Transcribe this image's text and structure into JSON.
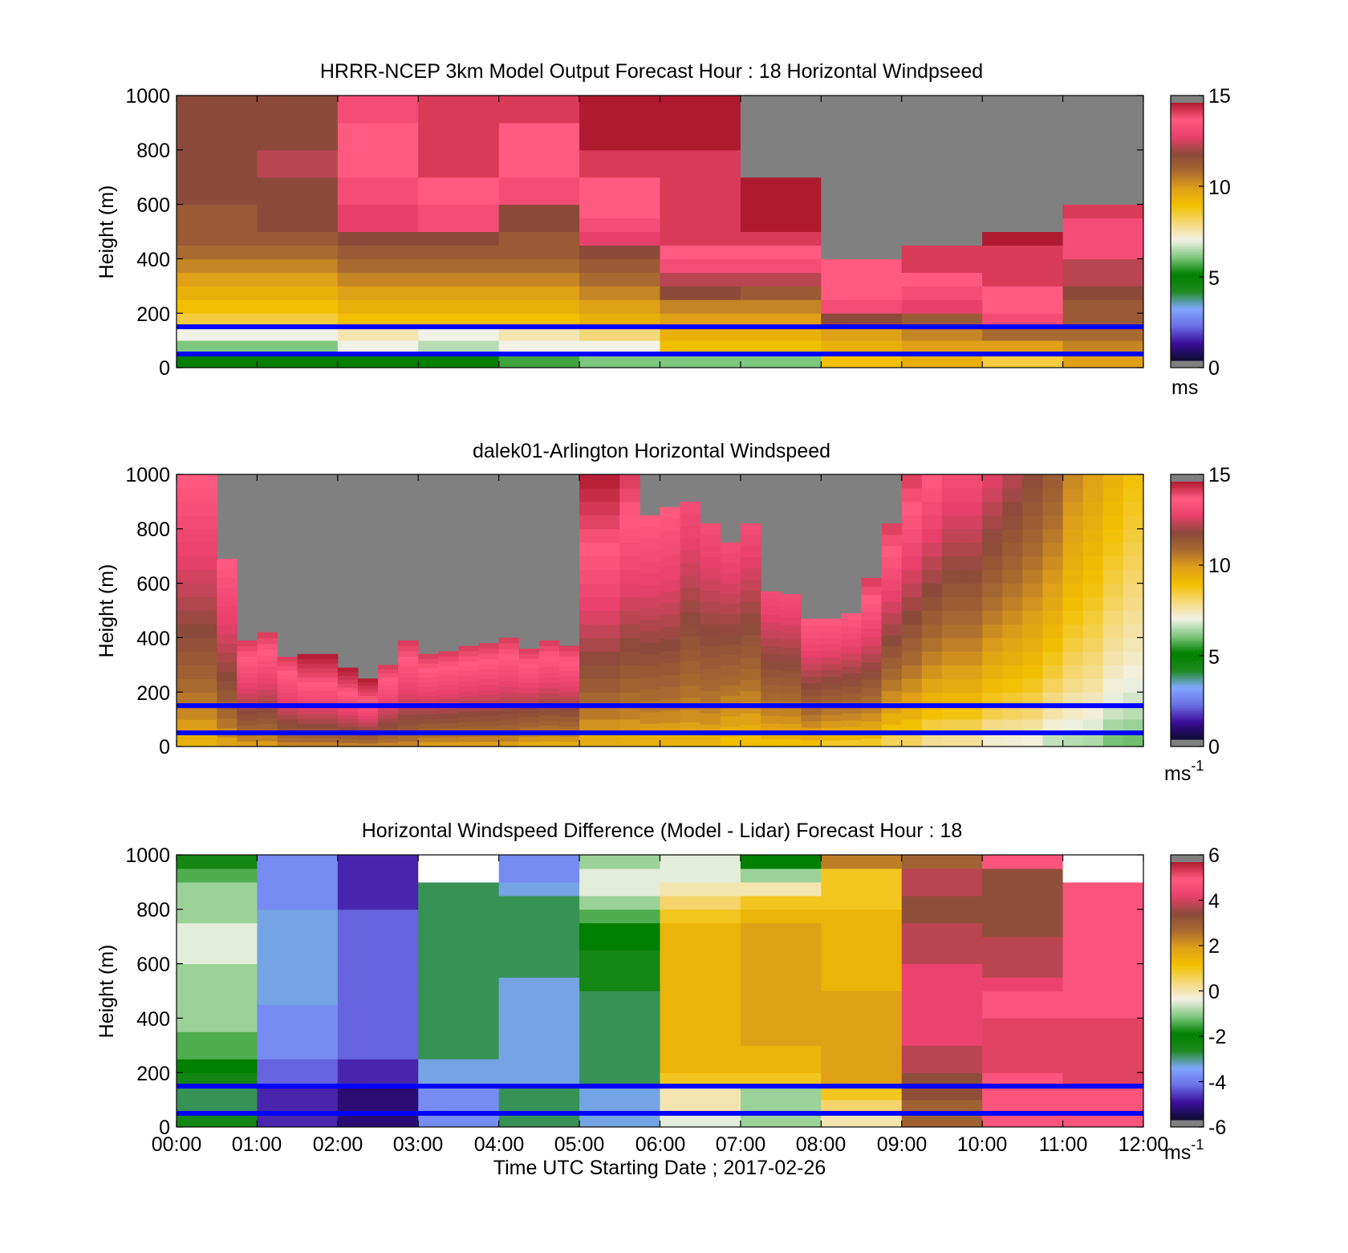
{
  "panels": [
    {
      "title": "HRRR-NCEP 3km Model Output   Forecast Hour : 18 Horizontal Windpseed",
      "ylabel": "Height (m)",
      "yticks": [
        "0",
        "200",
        "400",
        "600",
        "800",
        "1000"
      ],
      "colorbar": {
        "ticks": [
          "0",
          "5",
          "10",
          "15"
        ],
        "unit": "ms",
        "unit_sup": ""
      }
    },
    {
      "title": "dalek01-Arlington  Horizontal Windspeed",
      "ylabel": "Height (m)",
      "yticks": [
        "0",
        "200",
        "400",
        "600",
        "800",
        "1000"
      ],
      "colorbar": {
        "ticks": [
          "0",
          "5",
          "10",
          "15"
        ],
        "unit": "ms",
        "unit_sup": "-1"
      }
    },
    {
      "title": "Horizontal Windspeed Difference (Model - Lidar) Forecast Hour : 18",
      "ylabel": "Height (m)",
      "yticks": [
        "0",
        "200",
        "400",
        "600",
        "800",
        "1000"
      ],
      "colorbar": {
        "ticks": [
          "-6",
          "-4",
          "-2",
          "0",
          "2",
          "4",
          "6"
        ],
        "unit": "ms",
        "unit_sup": "-1"
      }
    }
  ],
  "xticks": [
    "00:00",
    "01:00",
    "02:00",
    "03:00",
    "04:00",
    "05:00",
    "06:00",
    "07:00",
    "08:00",
    "09:00",
    "10:00",
    "11:00",
    "12:00"
  ],
  "xlabel": "Time UTC  Starting Date ; 2017-02-26",
  "colors": {
    "missing": "#808080",
    "reference_lines": "#0000ff",
    "speed_stops": [
      "#0d0d30",
      "#3b0d9a",
      "#6b6fe6",
      "#80a8ff",
      "#1e8a1e",
      "#008000",
      "#7ec77e",
      "#f2f2e6",
      "#f5d87a",
      "#f2c000",
      "#e0a018",
      "#a86a30",
      "#8b4a3a",
      "#e8406a",
      "#ff5a80",
      "#b01a30"
    ],
    "diff_stops": [
      "#0d0d30",
      "#3b0d9a",
      "#6b6fe6",
      "#80a8ff",
      "#1e8a1e",
      "#008000",
      "#7ec77e",
      "#f2f2e6",
      "#f5d87a",
      "#f2c000",
      "#e0a018",
      "#a86a30",
      "#8b4a3a",
      "#e8406a",
      "#ff5a80",
      "#b01a30"
    ]
  },
  "chart_data": [
    {
      "type": "heatmap",
      "title": "HRRR-NCEP 3km Model Output   Forecast Hour : 18 Horizontal Windpseed",
      "xlabel": "",
      "ylabel": "Height (m)",
      "xlim": [
        0,
        12
      ],
      "ylim": [
        0,
        1000
      ],
      "x_unit": "hours UTC",
      "time_start_hours": [
        0,
        1,
        2,
        3,
        4,
        5,
        6,
        7,
        8,
        9,
        10,
        11
      ],
      "time_step_hours": 1,
      "heights_m": [
        0,
        50,
        100,
        150,
        200,
        250,
        300,
        350,
        400,
        450,
        500,
        550,
        600,
        700,
        800,
        900
      ],
      "height_top_m": 1000,
      "values_ms": [
        [
          5,
          6,
          7,
          8.5,
          9,
          9.5,
          10,
          10.5,
          11,
          11.5,
          11.5,
          11.5,
          12,
          12,
          12,
          12
        ],
        [
          5,
          6,
          7,
          8.5,
          9,
          9.5,
          10,
          10.5,
          11,
          11.5,
          12,
          12,
          12,
          12.5,
          12,
          12
        ],
        [
          5,
          7,
          7.5,
          9,
          9.5,
          10,
          10.5,
          11,
          11.5,
          12,
          13,
          13,
          13.5,
          14,
          14,
          13.5
        ],
        [
          5,
          6.5,
          7,
          9,
          9.5,
          10,
          10.5,
          11,
          11.5,
          12,
          13.5,
          13.5,
          14,
          14.5,
          14.5,
          14.5
        ],
        [
          5.5,
          7,
          7.5,
          9,
          9.5,
          10,
          10.5,
          11,
          11.5,
          11.5,
          12,
          12,
          13.5,
          14,
          14,
          14.5
        ],
        [
          6,
          7,
          8,
          9.5,
          10,
          10.5,
          11,
          11.5,
          12,
          13,
          13.5,
          14,
          14,
          14.5,
          15,
          15
        ],
        [
          6,
          9,
          9.5,
          10,
          10.5,
          12,
          12.5,
          13.5,
          14,
          14.5,
          14.5,
          14.5,
          14.5,
          14.5,
          15,
          15
        ],
        [
          6,
          9,
          9.5,
          10,
          10.5,
          11.5,
          12.5,
          13.5,
          14,
          14.5,
          15,
          15,
          15,
          null,
          null,
          null
        ],
        [
          9,
          9.5,
          10,
          12,
          13.5,
          14,
          14,
          14,
          null,
          null,
          null,
          null,
          null,
          null,
          null,
          null
        ],
        [
          9.5,
          10,
          10.5,
          11.5,
          13,
          13.5,
          14,
          14.5,
          14.5,
          null,
          null,
          null,
          null,
          null,
          null,
          null
        ],
        [
          8.5,
          10,
          11,
          13.5,
          14,
          14,
          14.5,
          14.5,
          14.5,
          15,
          null,
          null,
          null,
          null,
          null,
          null
        ],
        [
          10,
          10.5,
          11,
          11.5,
          11.5,
          12,
          12.5,
          12.5,
          13.5,
          13.5,
          13.5,
          14.5,
          null,
          null,
          null,
          null
        ]
      ],
      "null_meaning": "no data (gray)",
      "reference_lines_m": [
        50,
        150
      ],
      "colorbar": {
        "min": 0,
        "max": 15,
        "ticks": [
          0,
          5,
          10,
          15
        ],
        "unit": "ms"
      }
    },
    {
      "type": "heatmap",
      "title": "dalek01-Arlington  Horizontal Windspeed",
      "xlabel": "",
      "ylabel": "Height (m)",
      "xlim": [
        0,
        12
      ],
      "ylim": [
        0,
        1000
      ],
      "x_unit": "hours UTC",
      "time_step_hours": 0.25,
      "profile_top_m": [
        1000,
        1000,
        690,
        390,
        420,
        330,
        340,
        340,
        290,
        250,
        300,
        390,
        340,
        350,
        370,
        380,
        400,
        360,
        390,
        370,
        1000,
        1000,
        1000,
        850,
        880,
        900,
        820,
        750,
        820,
        570,
        560,
        470,
        470,
        490,
        620,
        820,
        1000,
        1000,
        1000,
        1000,
        1000,
        1000,
        1000,
        1000,
        1000,
        1000,
        1000,
        1000
      ],
      "surface_speed_ms": [
        9,
        9,
        9.5,
        9.5,
        9.5,
        10,
        10,
        10,
        10,
        10,
        10,
        10,
        9.5,
        9.5,
        9.5,
        9.5,
        9.5,
        9,
        9,
        9,
        9,
        9,
        9,
        9,
        9,
        9,
        9,
        8.5,
        8.5,
        8.5,
        8.5,
        8.5,
        8,
        8,
        8,
        7.5,
        7.5,
        7,
        7,
        7,
        6.5,
        6.5,
        6.5,
        6,
        6,
        6,
        5.5,
        5.5
      ],
      "aloft_speed_ms": [
        14,
        14,
        14,
        14.5,
        14.5,
        14.5,
        15,
        15,
        15,
        15,
        14.5,
        14.5,
        14.5,
        14.5,
        14.5,
        14.5,
        14.5,
        14.5,
        14.5,
        14.5,
        15,
        15,
        14.5,
        14,
        14,
        13.5,
        13.5,
        13.5,
        13.5,
        13.5,
        13.5,
        14,
        14,
        14,
        14.5,
        14.5,
        14.5,
        14,
        13.5,
        13.5,
        13,
        12.5,
        12,
        11.5,
        10.5,
        10,
        9.5,
        9
      ],
      "null_meaning": "no data above profile top (gray)",
      "reference_lines_m": [
        50,
        150
      ],
      "colorbar": {
        "min": 0,
        "max": 15,
        "ticks": [
          0,
          5,
          10,
          15
        ],
        "unit": "ms-1"
      }
    },
    {
      "type": "heatmap",
      "title": "Horizontal Windspeed Difference (Model - Lidar) Forecast Hour : 18",
      "xlabel": "Time UTC  Starting Date ; 2017-02-26",
      "ylabel": "Height (m)",
      "xlim": [
        0,
        12
      ],
      "ylim": [
        0,
        1000
      ],
      "x_unit": "hours UTC",
      "x_ticks": [
        "00:00",
        "01:00",
        "02:00",
        "03:00",
        "04:00",
        "05:00",
        "06:00",
        "07:00",
        "08:00",
        "09:00",
        "10:00",
        "11:00",
        "12:00"
      ],
      "time_start_hours": [
        0,
        1,
        2,
        3,
        4,
        5,
        6,
        7,
        8,
        9,
        10,
        11
      ],
      "time_step_hours": 1,
      "heights_m": [
        0,
        50,
        100,
        150,
        200,
        250,
        300,
        350,
        400,
        450,
        500,
        550,
        600,
        650,
        700,
        750,
        800,
        850,
        900,
        950
      ],
      "height_top_m": 1000,
      "values_ms": [
        [
          -2.5,
          -3,
          -3,
          -2.5,
          -2,
          -1.5,
          -1.5,
          -1,
          -1,
          -1,
          -1,
          -1,
          -0.5,
          -0.5,
          -0.5,
          -1,
          -1,
          -1,
          -1.5,
          -2.5
        ],
        [
          -5,
          -5,
          -5,
          -4.5,
          -4.5,
          -4,
          -4,
          -4,
          -4,
          -3.5,
          -3.5,
          -3.5,
          -3.5,
          -3.5,
          -3.5,
          -3.5,
          -4,
          -4,
          -4,
          -4
        ],
        [
          -5.5,
          -5.5,
          -5.5,
          -5,
          -5,
          -4.5,
          -4.5,
          -4.5,
          -4.5,
          -4.5,
          -4.5,
          -4.5,
          -4.5,
          -4.5,
          -4.5,
          -4.5,
          -5,
          -5,
          -5,
          -5
        ],
        [
          -4,
          -4,
          -4,
          -3.5,
          -3.5,
          -3,
          -3,
          -3,
          -3,
          -3,
          -3,
          -3,
          -3,
          -3,
          -3,
          -3,
          -3,
          -3,
          null,
          null
        ],
        [
          -3,
          -3,
          -3,
          -3.5,
          -3.5,
          -3.5,
          -3.5,
          -3.5,
          -3.5,
          -3.5,
          -3.5,
          -3,
          -3,
          -3,
          -3,
          -3,
          -3,
          -3.5,
          -4,
          -4
        ],
        [
          -3.5,
          -3.5,
          -3.5,
          -3,
          -3,
          -3,
          -3,
          -3,
          -3,
          -3,
          -2.5,
          -2.5,
          -2.5,
          -2,
          -2,
          -1.5,
          -1,
          -0.5,
          -0.5,
          -1
        ],
        [
          -0.5,
          0,
          0,
          1,
          1.5,
          1.5,
          1.5,
          1.5,
          1.5,
          1.5,
          1.5,
          1.5,
          1.5,
          1.5,
          1.5,
          1,
          0.5,
          0,
          -0.5,
          -0.5
        ],
        [
          -1,
          -1,
          -1,
          1,
          1.5,
          1.5,
          2,
          2,
          2,
          2,
          2,
          2,
          2,
          2,
          2,
          1.5,
          1,
          0,
          -1,
          -2
        ],
        [
          0,
          0.5,
          1,
          2,
          2,
          2,
          2,
          2,
          2,
          2,
          1.5,
          1.5,
          1.5,
          1.5,
          1.5,
          1.5,
          1,
          1,
          1,
          2.5
        ],
        [
          3,
          3,
          3.5,
          3.5,
          4,
          4,
          4.5,
          4.5,
          4.5,
          4.5,
          4.5,
          4.5,
          4,
          4,
          4,
          3.5,
          3.5,
          4,
          4,
          3
        ],
        [
          5,
          5,
          5,
          5,
          5.5,
          5.5,
          5.5,
          5.5,
          5,
          5,
          4.5,
          4,
          4,
          4,
          3.5,
          3.5,
          3.5,
          3.5,
          3.5,
          5
        ],
        [
          5,
          5,
          5,
          5.5,
          5.5,
          5.5,
          5.5,
          5.5,
          5,
          5,
          5,
          5,
          5,
          5,
          5,
          5,
          5,
          5,
          null,
          null
        ]
      ],
      "null_meaning": "no data (white/gray)",
      "reference_lines_m": [
        50,
        150
      ],
      "colorbar": {
        "min": -6,
        "max": 6,
        "ticks": [
          -6,
          -4,
          -2,
          0,
          2,
          4,
          6
        ],
        "unit": "ms-1"
      }
    }
  ]
}
